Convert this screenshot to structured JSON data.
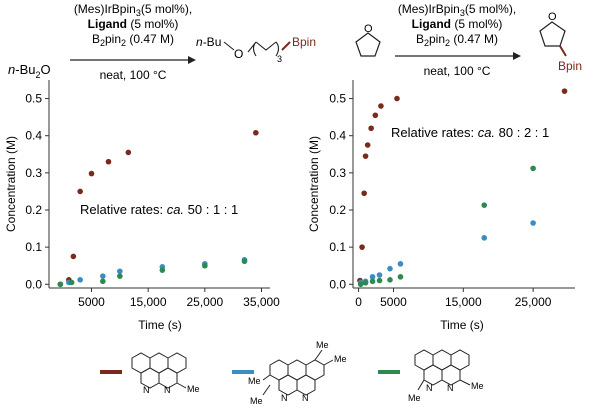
{
  "reactions": [
    {
      "substrate": "n-Bu2O",
      "conditions": [
        "(Mes)IrBpin3(5 mol%),",
        "Ligand (5 mol%)",
        "B2pin2 (0.47 M)"
      ],
      "below_arrow": "neat, 100 °C",
      "product": "n-Bu–O–(CH2)3–Bpin"
    },
    {
      "substrate": "THF",
      "conditions": [
        "(Mes)IrBpin3(5 mol%),",
        "Ligand (5 mol%)",
        "B2pin2 (0.47 M)"
      ],
      "below_arrow": "neat, 100 °C",
      "product": "3-Bpin-tetrahydrofuran"
    }
  ],
  "chart_data": [
    {
      "type": "scatter",
      "title": "",
      "xlabel": "Time (s)",
      "ylabel": "Concentration (M)",
      "xlim": [
        -2500,
        36500
      ],
      "ylim": [
        -0.01,
        0.55
      ],
      "xticks": [
        5000,
        15000,
        25000,
        35000
      ],
      "xtick_labels": [
        "5000",
        "15,000",
        "25,000",
        "35,000"
      ],
      "yticks": [
        0.0,
        0.1,
        0.2,
        0.3,
        0.4,
        0.5
      ],
      "ytick_labels": [
        "0.0",
        "0.1",
        "0.2",
        "0.3",
        "0.4",
        "0.5"
      ],
      "grid": false,
      "annotation": {
        "prefix": "Relative rates: ",
        "italic": "ca.",
        "ratio": " 50 : 1 : 1"
      },
      "series": [
        {
          "color": "#7a2a1d",
          "points": [
            [
              -500,
              0.0
            ],
            [
              1000,
              0.012
            ],
            [
              1800,
              0.075
            ],
            [
              3000,
              0.25
            ],
            [
              5000,
              0.298
            ],
            [
              8000,
              0.33
            ],
            [
              11500,
              0.355
            ],
            [
              34000,
              0.408
            ]
          ]
        },
        {
          "color": "#3b8cc2",
          "points": [
            [
              1000,
              0.005
            ],
            [
              3000,
              0.012
            ],
            [
              7000,
              0.022
            ],
            [
              10000,
              0.035
            ],
            [
              17500,
              0.047
            ],
            [
              25000,
              0.055
            ],
            [
              32000,
              0.066
            ]
          ]
        },
        {
          "color": "#2e8a4c",
          "points": [
            [
              -500,
              0.0
            ],
            [
              1500,
              0.005
            ],
            [
              7000,
              0.008
            ],
            [
              10000,
              0.022
            ],
            [
              17500,
              0.038
            ],
            [
              25000,
              0.05
            ],
            [
              32000,
              0.062
            ]
          ]
        }
      ]
    },
    {
      "type": "scatter",
      "title": "",
      "xlabel": "Time (s)",
      "ylabel": "Concentration (M)",
      "xlim": [
        -800,
        31000
      ],
      "ylim": [
        -0.01,
        0.55
      ],
      "xticks": [
        0,
        5000,
        15000,
        25000
      ],
      "xtick_labels": [
        "0",
        "5000",
        "15,000",
        "25,000"
      ],
      "yticks": [
        0.0,
        0.1,
        0.2,
        0.3,
        0.4,
        0.5
      ],
      "ytick_labels": [
        "0.0",
        "0.1",
        "0.2",
        "0.3",
        "0.4",
        "0.5"
      ],
      "grid": false,
      "annotation": {
        "prefix": "Relative rates: ",
        "italic": "ca.",
        "ratio": " 80 : 2 : 1"
      },
      "series": [
        {
          "color": "#7a2a1d",
          "points": [
            [
              200,
              0.01
            ],
            [
              500,
              0.1
            ],
            [
              800,
              0.245
            ],
            [
              1000,
              0.345
            ],
            [
              1300,
              0.375
            ],
            [
              1800,
              0.42
            ],
            [
              2400,
              0.455
            ],
            [
              3200,
              0.48
            ],
            [
              5500,
              0.5
            ],
            [
              29500,
              0.52
            ]
          ]
        },
        {
          "color": "#3b8cc2",
          "points": [
            [
              300,
              0.005
            ],
            [
              1000,
              0.008
            ],
            [
              2000,
              0.02
            ],
            [
              3000,
              0.025
            ],
            [
              4500,
              0.042
            ],
            [
              6000,
              0.055
            ],
            [
              18000,
              0.125
            ],
            [
              25000,
              0.165
            ]
          ]
        },
        {
          "color": "#2e8a4c",
          "points": [
            [
              300,
              0.0
            ],
            [
              1000,
              0.004
            ],
            [
              2000,
              0.008
            ],
            [
              3000,
              0.01
            ],
            [
              4500,
              0.012
            ],
            [
              6000,
              0.02
            ],
            [
              18000,
              0.213
            ],
            [
              25000,
              0.312
            ]
          ]
        }
      ]
    }
  ],
  "legend": [
    {
      "color": "#7a2a1d",
      "substituents": [
        "Me"
      ]
    },
    {
      "color": "#3b8cc2",
      "substituents": [
        "Me",
        "Me",
        "Me",
        "Me"
      ]
    },
    {
      "color": "#2e8a4c",
      "substituents": [
        "Me",
        "Me"
      ]
    }
  ]
}
